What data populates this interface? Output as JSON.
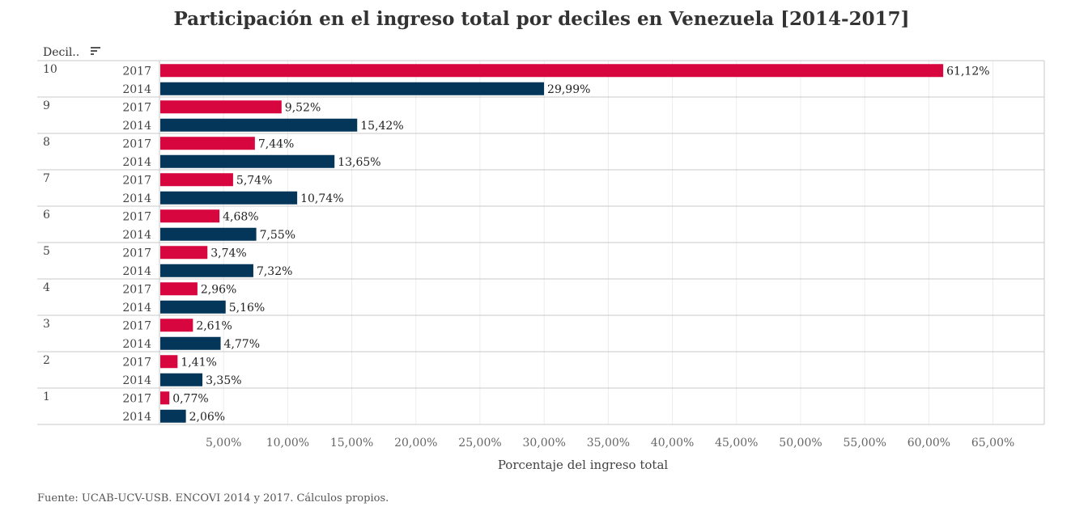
{
  "chart_data": {
    "type": "bar",
    "orientation": "horizontal",
    "title": "Participación en el ingreso total por deciles en Venezuela [2014-2017]",
    "row_header": "Decil..",
    "xlabel": "Porcentaje del ingreso total",
    "categories": [
      "10",
      "9",
      "8",
      "7",
      "6",
      "5",
      "4",
      "3",
      "2",
      "1"
    ],
    "series": [
      {
        "name": "2017",
        "color": "#d7063e",
        "values": [
          61.12,
          9.52,
          7.44,
          5.74,
          4.68,
          3.74,
          2.96,
          2.61,
          1.41,
          0.77
        ],
        "labels": [
          "61,12%",
          "9,52%",
          "7,44%",
          "5,74%",
          "4,68%",
          "3,74%",
          "2,96%",
          "2,61%",
          "1,41%",
          "0,77%"
        ]
      },
      {
        "name": "2014",
        "color": "#04365a",
        "values": [
          29.99,
          15.42,
          13.65,
          10.74,
          7.55,
          7.32,
          5.16,
          4.77,
          3.35,
          2.06
        ],
        "labels": [
          "29,99%",
          "15,42%",
          "13,65%",
          "10,74%",
          "7,55%",
          "7,32%",
          "5,16%",
          "4,77%",
          "3,35%",
          "2,06%"
        ]
      }
    ],
    "xlim": [
      0,
      68
    ],
    "xticks": [
      5,
      10,
      15,
      20,
      25,
      30,
      35,
      40,
      45,
      50,
      55,
      60,
      65
    ],
    "xtick_labels": [
      "5,00%",
      "10,00%",
      "15,00%",
      "20,00%",
      "25,00%",
      "30,00%",
      "35,00%",
      "40,00%",
      "45,00%",
      "50,00%",
      "55,00%",
      "60,00%",
      "65,00%"
    ],
    "grid": true,
    "footer": "Fuente: UCAB-UCV-USB. ENCOVI 2014 y 2017. Cálculos propios."
  },
  "icons": {
    "sort": "sort-descending-icon"
  }
}
